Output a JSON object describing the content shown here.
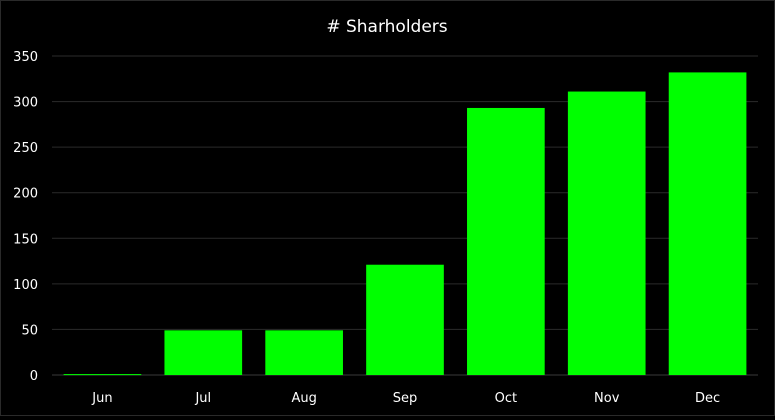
{
  "chart_data": {
    "type": "bar",
    "title": "# Sharholders",
    "categories": [
      "Jun",
      "Jul",
      "Aug",
      "Sep",
      "Oct",
      "Nov",
      "Dec"
    ],
    "values": [
      1,
      49,
      49,
      121,
      293,
      311,
      332
    ],
    "xlabel": "",
    "ylabel": "",
    "ylim": [
      0,
      350
    ],
    "yticks": [
      0,
      50,
      100,
      150,
      200,
      250,
      300,
      350
    ],
    "grid": true,
    "legend": "none",
    "colors": {
      "bar": "#00ff00",
      "background": "#000000",
      "text": "#ffffff",
      "grid": "#2b2b2b"
    }
  }
}
